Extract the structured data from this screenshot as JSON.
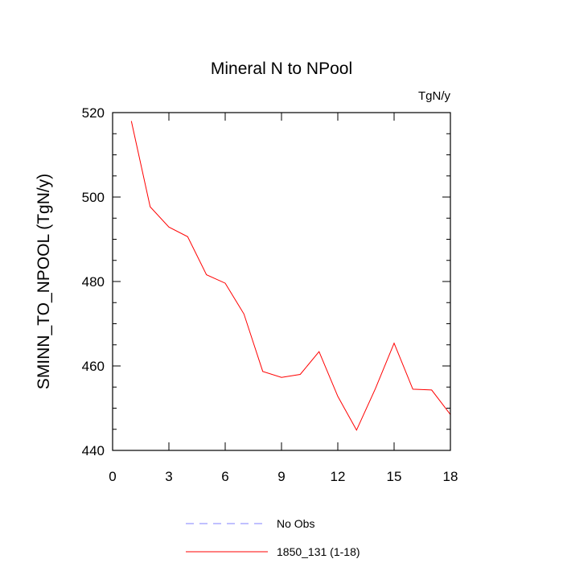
{
  "chart_data": {
    "type": "line",
    "title": "Mineral N to NPool",
    "units_label": "TgN/y",
    "ylabel": "SMINN_TO_NPOOL  (TgN/y)",
    "xlabel": "",
    "xlim": [
      0,
      18
    ],
    "ylim": [
      440,
      520
    ],
    "x_ticks": [
      0,
      3,
      6,
      9,
      12,
      15,
      18
    ],
    "y_ticks": [
      440,
      460,
      480,
      500,
      520
    ],
    "x_tick_labels": [
      "0",
      "3",
      "6",
      "9",
      "12",
      "15",
      "18"
    ],
    "y_tick_labels": [
      "440",
      "460",
      "480",
      "500",
      "520"
    ],
    "grid": false,
    "legend_position": "bottom",
    "series": [
      {
        "name": "1850_131 (1-18)",
        "color": "#ff0000",
        "style": "solid",
        "x": [
          1,
          2,
          3,
          4,
          5,
          6,
          7,
          8,
          9,
          10,
          11,
          12,
          13,
          14,
          15,
          16,
          17,
          18
        ],
        "values": [
          518.0,
          497.7,
          492.9,
          490.6,
          481.6,
          479.6,
          472.3,
          458.7,
          457.3,
          458.0,
          463.4,
          452.8,
          444.8,
          454.6,
          465.4,
          454.5,
          454.3,
          448.5
        ]
      }
    ],
    "legend": [
      {
        "label": "No Obs",
        "color": "#8080ff",
        "style": "dashed"
      },
      {
        "label": "1850_131 (1-18)",
        "color": "#ff0000",
        "style": "solid"
      }
    ]
  }
}
